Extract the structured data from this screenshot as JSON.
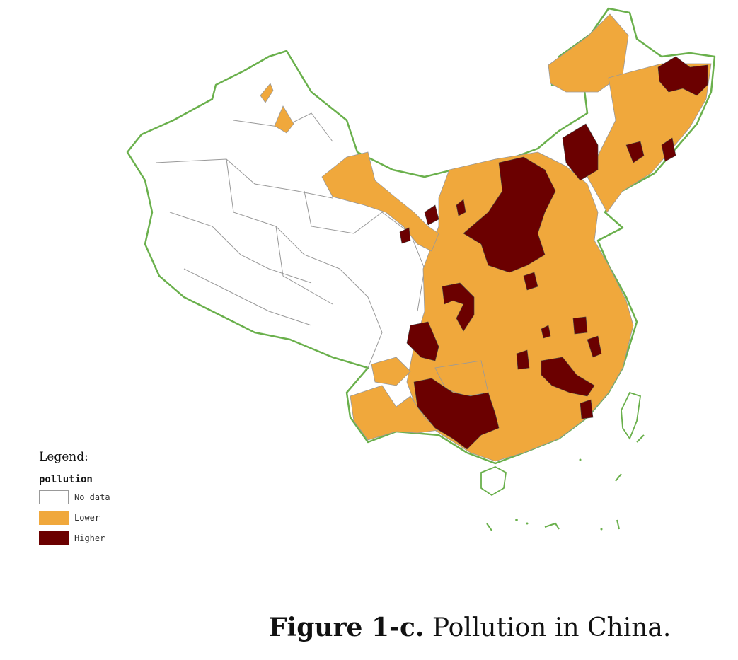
{
  "legend": {
    "title": "Legend:",
    "subtitle": "pollution",
    "items": [
      {
        "label": "No data",
        "color": "#ffffff"
      },
      {
        "label": "Lower",
        "color": "#f0a83c"
      },
      {
        "label": "Higher",
        "color": "#6b0000"
      }
    ]
  },
  "caption": {
    "label": "Figure 1-c.",
    "text": " Pollution in China."
  },
  "colors": {
    "border": "#6ab04c",
    "internal_lines": "#999999",
    "no_data": "#ffffff",
    "lower": "#f0a83c",
    "higher": "#6b0000"
  }
}
